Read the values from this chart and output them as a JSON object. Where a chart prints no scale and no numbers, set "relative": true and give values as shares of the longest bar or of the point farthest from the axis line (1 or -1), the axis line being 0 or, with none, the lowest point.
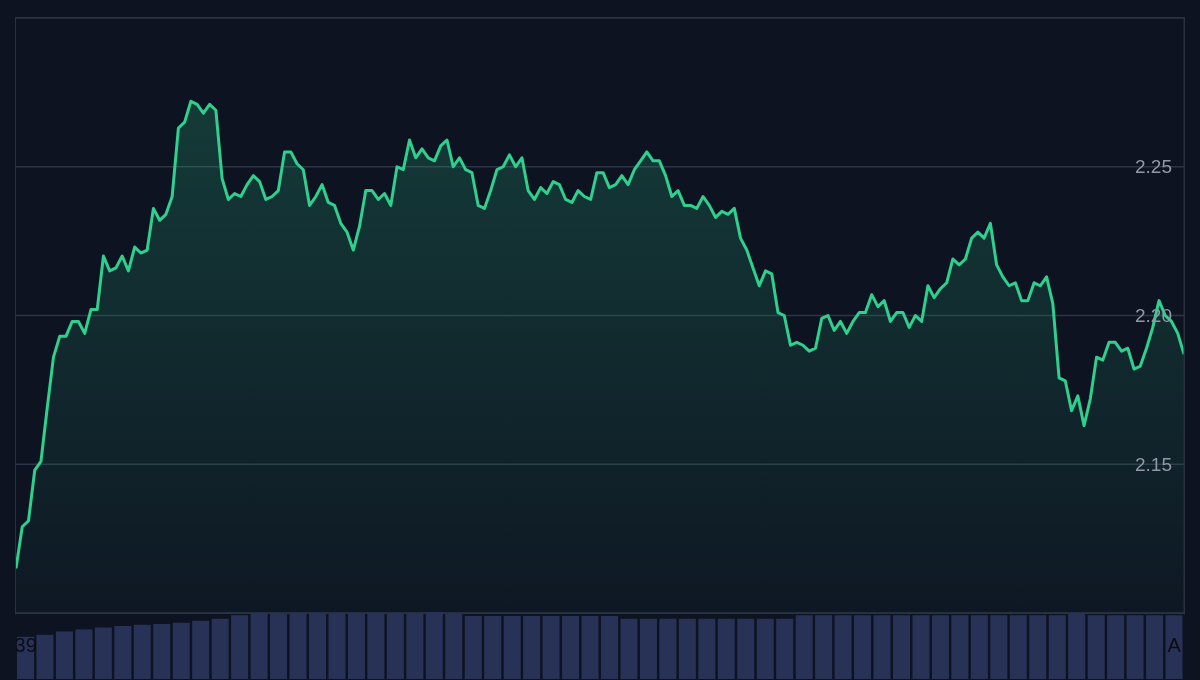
{
  "chart_data": [
    {
      "type": "area",
      "color": "#2fcf8e",
      "ylim": [
        2.1,
        2.3
      ],
      "yticks": [
        2.15,
        {
          "value": 2.2,
          "label": "2.20"
        },
        2.25
      ],
      "grid": "y",
      "tick_labels": "y",
      "categories": [
        null,
        null,
        null,
        null,
        null,
        null,
        null,
        null,
        null,
        null,
        null,
        null,
        null,
        null,
        null,
        null,
        null,
        null,
        null,
        null,
        null,
        null,
        null,
        null,
        null,
        null,
        null,
        null,
        null,
        null,
        null,
        null,
        null,
        null,
        null,
        null,
        null,
        null,
        null,
        null,
        null,
        null,
        null,
        null,
        null,
        null,
        null,
        null,
        null,
        null,
        null,
        null,
        null,
        null,
        null,
        null,
        null,
        null,
        null,
        null,
        null,
        null,
        null,
        null,
        null,
        null,
        null,
        null,
        null,
        null,
        null,
        null,
        null,
        null,
        null,
        null,
        null,
        null,
        null,
        null,
        null,
        null,
        null,
        null,
        null,
        null,
        null,
        null,
        null,
        null,
        null,
        null,
        null,
        null,
        null,
        null,
        null,
        null,
        null,
        null,
        null,
        null,
        null,
        null,
        null,
        null,
        null,
        null,
        null,
        null,
        null,
        null,
        null,
        null,
        null,
        null,
        null,
        null,
        null,
        null,
        null,
        null,
        null,
        null,
        null,
        null,
        null,
        null,
        null,
        null,
        null,
        null,
        null,
        null,
        null,
        null,
        null,
        null,
        null,
        null,
        null,
        null,
        null,
        null,
        null,
        null,
        null,
        null,
        null,
        null,
        null,
        null,
        null,
        null,
        null,
        null,
        null,
        null,
        null,
        null,
        null,
        null,
        null,
        null,
        null,
        null,
        null,
        null,
        null,
        null,
        null,
        null,
        null,
        null,
        null,
        null,
        null,
        null,
        null,
        null,
        null,
        null,
        null,
        null,
        null,
        null,
        null,
        null
      ],
      "values": [
        2.115,
        2.129,
        2.131,
        2.148,
        2.151,
        2.169,
        2.186,
        2.193,
        2.193,
        2.198,
        2.198,
        2.194,
        2.202,
        2.202,
        2.22,
        2.215,
        2.216,
        2.22,
        2.215,
        2.223,
        2.221,
        2.222,
        2.236,
        2.232,
        2.234,
        2.24,
        2.263,
        2.265,
        2.272,
        2.271,
        2.268,
        2.271,
        2.269,
        2.246,
        2.239,
        2.241,
        2.24,
        2.244,
        2.247,
        2.245,
        2.239,
        2.24,
        2.242,
        2.255,
        2.255,
        2.251,
        2.249,
        2.237,
        2.24,
        2.244,
        2.238,
        2.237,
        2.231,
        2.228,
        2.222,
        2.23,
        2.242,
        2.242,
        2.239,
        2.241,
        2.237,
        2.25,
        2.249,
        2.259,
        2.253,
        2.256,
        2.253,
        2.252,
        2.257,
        2.259,
        2.25,
        2.253,
        2.249,
        2.248,
        2.237,
        2.236,
        2.242,
        2.249,
        2.25,
        2.254,
        2.25,
        2.253,
        2.242,
        2.239,
        2.243,
        2.241,
        2.245,
        2.244,
        2.239,
        2.238,
        2.242,
        2.24,
        2.239,
        2.248,
        2.248,
        2.243,
        2.244,
        2.247,
        2.244,
        2.249,
        2.252,
        2.255,
        2.252,
        2.252,
        2.247,
        2.24,
        2.242,
        2.237,
        2.237,
        2.236,
        2.24,
        2.237,
        2.233,
        2.235,
        2.234,
        2.236,
        2.226,
        2.222,
        2.216,
        2.21,
        2.215,
        2.214,
        2.201,
        2.2,
        2.19,
        2.191,
        2.19,
        2.188,
        2.189,
        2.199,
        2.2,
        2.195,
        2.198,
        2.194,
        2.198,
        2.201,
        2.201,
        2.207,
        2.203,
        2.205,
        2.198,
        2.201,
        2.201,
        2.196,
        2.2,
        2.198,
        2.21,
        2.206,
        2.209,
        2.211,
        2.219,
        2.217,
        2.219,
        2.226,
        2.228,
        2.226,
        2.231,
        2.217,
        2.213,
        2.21,
        2.211,
        2.205,
        2.205,
        2.211,
        2.21,
        2.213,
        2.204,
        2.179,
        2.178,
        2.168,
        2.173,
        2.163,
        2.172,
        2.186,
        2.185,
        2.191,
        2.191,
        2.188,
        2.189,
        2.182,
        2.183,
        2.189,
        2.196,
        2.205,
        2.2,
        2.198,
        2.194,
        2.187
      ]
    },
    {
      "type": "bar",
      "color": "#283257",
      "relative": true,
      "categories": [
        "39",
        null,
        null,
        null,
        null,
        null,
        null,
        null,
        null,
        null,
        null,
        null,
        null,
        null,
        null,
        null,
        null,
        null,
        null,
        null,
        null,
        null,
        null,
        null,
        null,
        null,
        null,
        null,
        null,
        null,
        null,
        null,
        null,
        null,
        null,
        null,
        null,
        null,
        null,
        null,
        null,
        null,
        null,
        null,
        null,
        null,
        null,
        null,
        null,
        null,
        null,
        null,
        null,
        null,
        null,
        null,
        null,
        null,
        null,
        "A"
      ],
      "values": [
        0.63,
        0.66,
        0.71,
        0.74,
        0.77,
        0.79,
        0.81,
        0.82,
        0.84,
        0.87,
        0.9,
        0.95,
        0.97,
        0.97,
        0.97,
        0.97,
        0.97,
        0.97,
        0.97,
        0.97,
        0.97,
        1,
        0.97,
        0.94,
        0.94,
        0.94,
        0.94,
        0.94,
        0.94,
        0.94,
        0.94,
        0.9,
        0.9,
        0.9,
        0.9,
        0.9,
        0.9,
        0.9,
        0.9,
        0.9,
        0.95,
        0.95,
        0.95,
        0.95,
        0.95,
        0.95,
        0.95,
        0.95,
        0.95,
        0.95,
        0.95,
        0.95,
        0.95,
        0.95,
        0.97,
        0.95,
        0.95,
        0.95,
        0.95,
        0.95
      ]
    }
  ]
}
